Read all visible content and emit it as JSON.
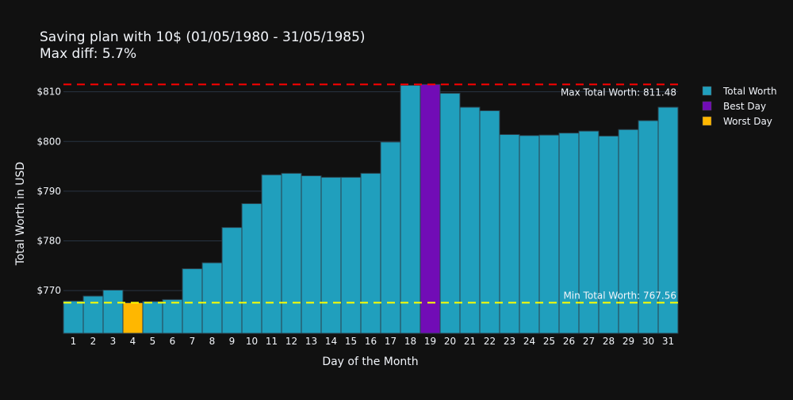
{
  "chart_data": {
    "type": "bar",
    "title_line1": "Saving plan with 10$ (01/05/1980 - 31/05/1985)",
    "title_line2": "Max diff: 5.7%",
    "xlabel": "Day of the Month",
    "ylabel": "Total Worth in USD",
    "ylim": [
      761.4,
      812.5
    ],
    "yticks": [
      770,
      780,
      790,
      800,
      810
    ],
    "ytick_labels": [
      "$770",
      "$780",
      "$790",
      "$800",
      "$810"
    ],
    "categories": [
      "1",
      "2",
      "3",
      "4",
      "5",
      "6",
      "7",
      "8",
      "9",
      "10",
      "11",
      "12",
      "13",
      "14",
      "15",
      "16",
      "17",
      "18",
      "19",
      "20",
      "21",
      "22",
      "23",
      "24",
      "25",
      "26",
      "27",
      "28",
      "29",
      "30",
      "31"
    ],
    "values": [
      767.9,
      768.9,
      770.1,
      767.56,
      767.8,
      768.2,
      774.4,
      775.6,
      782.7,
      787.5,
      793.3,
      793.6,
      793.1,
      792.8,
      792.8,
      793.6,
      799.9,
      811.3,
      811.48,
      809.7,
      806.9,
      806.2,
      801.4,
      801.2,
      801.3,
      801.7,
      802.1,
      801.1,
      802.4,
      804.2,
      806.9
    ],
    "best_day": "19",
    "worst_day": "4",
    "max_value": 811.48,
    "min_value": 767.56,
    "max_label": "Max Total Worth: 811.48",
    "min_label": "Min Total Worth: 767.56",
    "legend": [
      "Total Worth",
      "Best Day",
      "Worst Day"
    ],
    "legend_placement": "top-right",
    "colors": {
      "normal": "#209fbd",
      "best": "#710cb6",
      "worst": "#ffb700",
      "max_line": "#ff0000",
      "min_line": "#ffff00",
      "grid": "#283442"
    },
    "grid": true
  }
}
